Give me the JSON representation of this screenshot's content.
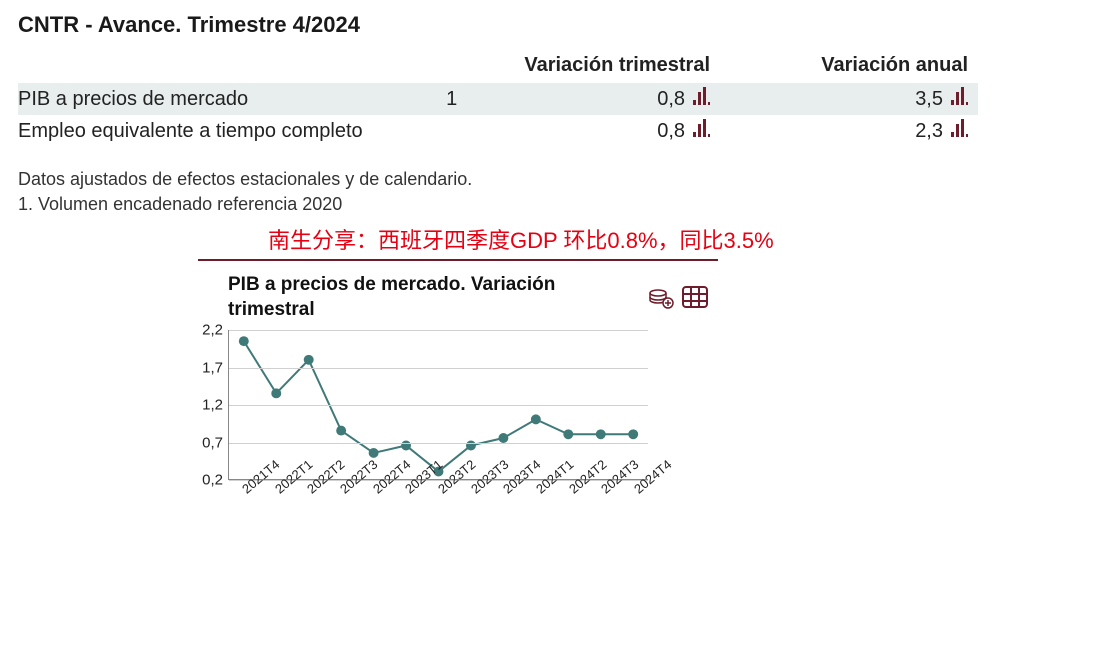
{
  "title": "CNTR - Avance. Trimestre 4/2024",
  "table": {
    "headers": {
      "col1": "Variación trimestral",
      "col2": "Variación anual"
    },
    "rows": [
      {
        "label": "PIB a precios de mercado",
        "note": "1",
        "q": "0,8",
        "y": "3,5",
        "highlight": true
      },
      {
        "label": "Empleo equivalente a tiempo completo",
        "note": "",
        "q": "0,8",
        "y": "2,3",
        "highlight": false
      }
    ],
    "icon_color": "#6d1d2b"
  },
  "footnotes": [
    "Datos ajustados de efectos estacionales y de calendario.",
    "1. Volumen encadenado referencia 2020"
  ],
  "chinese_annotation": "南生分享：西班牙四季度GDP 环比0.8%，同比3.5%",
  "chart": {
    "type": "line",
    "title": "PIB a precios de mercado. Variación trimestral",
    "accent_color": "#6d1d2b",
    "line_color": "#3f7a78",
    "line_width": 2,
    "marker_style": "circle",
    "marker_size": 5,
    "background_color": "#ffffff",
    "grid_color": "#d0d0d0",
    "ylim": [
      0.2,
      2.2
    ],
    "ytick_step": 0.5,
    "yticks": [
      0.2,
      0.7,
      1.2,
      1.7,
      2.2
    ],
    "ytick_labels": [
      "0,2",
      "0,7",
      "1,2",
      "1,7",
      "2,2"
    ],
    "x_categories": [
      "2021T4",
      "2022T1",
      "2022T2",
      "2022T3",
      "2022T4",
      "2023T1",
      "2023T2",
      "2023T3",
      "2023T4",
      "2024T1",
      "2024T2",
      "2024T3",
      "2024T4"
    ],
    "values": [
      2.05,
      1.35,
      1.8,
      0.85,
      0.55,
      0.65,
      0.3,
      0.65,
      0.75,
      1.0,
      0.8,
      0.8,
      0.8
    ],
    "tick_fontsize": 13,
    "label_fontsize": 15
  }
}
